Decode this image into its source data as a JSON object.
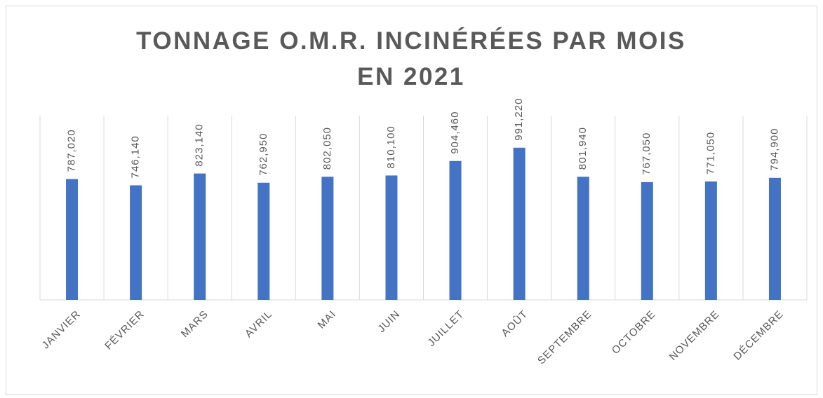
{
  "chart_data": {
    "type": "bar",
    "title": "TONNAGE O.M.R. INCINÉRÉES PAR MOIS EN 2021",
    "categories": [
      "JANVIER",
      "FÉVRIER",
      "MARS",
      "AVRIL",
      "MAI",
      "JUIN",
      "JUILLET",
      "AOÛT",
      "SEPTEMBRE",
      "OCTOBRE",
      "NOVEMBRE",
      "DÉCEMBRE"
    ],
    "values": [
      787020,
      746140,
      823140,
      762950,
      802050,
      810100,
      904460,
      991220,
      801940,
      767050,
      771050,
      794900
    ],
    "value_labels": [
      "787,020",
      "746,140",
      "823,140",
      "762,950",
      "802,050",
      "810,100",
      "904,460",
      "991,220",
      "801,940",
      "767,050",
      "771,050",
      "794,900"
    ],
    "color": "#4472c4",
    "ylim": [
      0,
      1200000
    ]
  }
}
